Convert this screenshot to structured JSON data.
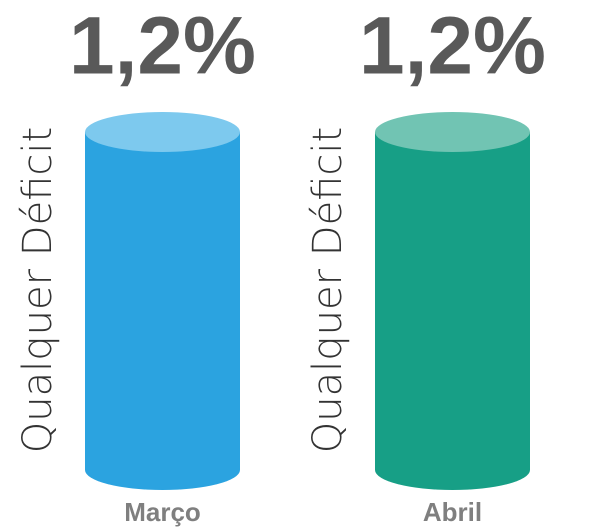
{
  "chart_data": {
    "type": "cylinder",
    "series_label": "Qualquer Déficit",
    "categories": [
      "Março",
      "Abril"
    ],
    "values": [
      1.2,
      1.2
    ],
    "value_labels": [
      "1,2%",
      "1,2%"
    ],
    "colors": [
      "#2ba3e0",
      "#179f86"
    ],
    "top_colors": [
      "#7dc9ee",
      "#71c4b3"
    ]
  }
}
